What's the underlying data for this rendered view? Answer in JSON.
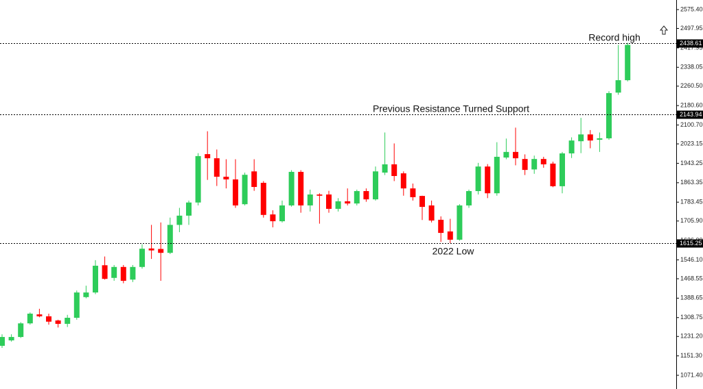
{
  "chart_data": {
    "type": "candlestick",
    "up_color": "#2ecc5a",
    "down_color": "#ff0000",
    "open": [
      1192.7,
      1215,
      1229,
      1285,
      1322,
      1314,
      1297,
      1283,
      1308,
      1393,
      1412,
      1524,
      1472,
      1517,
      1465,
      1517,
      1593,
      1591,
      1575,
      1690,
      1728,
      1782,
      1981,
      1964,
      1888,
      1877,
      1775,
      1910,
      1863,
      1733,
      1705,
      1770,
      1908,
      1770,
      1815,
      1815,
      1756,
      1787,
      1778,
      1829,
      1795,
      1905,
      1939,
      1902,
      1840,
      1809,
      1770,
      1711,
      1663,
      1629,
      1770,
      1829,
      1930,
      1820,
      1967,
      1990,
      1961,
      1918,
      1961,
      1942,
      1849,
      1984,
      2034,
      2062,
      2040,
      2046,
      2234,
      2285
    ],
    "high": [
      1240,
      1240,
      1290,
      1330,
      1345,
      1325,
      1300,
      1320,
      1420,
      1440,
      1545,
      1560,
      1525,
      1525,
      1525,
      1610,
      1690,
      1700,
      1720,
      1760,
      1790,
      1985,
      2075,
      2000,
      1960,
      1960,
      1905,
      1960,
      1870,
      1750,
      1790,
      1915,
      1915,
      1835,
      1820,
      1830,
      1800,
      1840,
      1835,
      1840,
      1930,
      2070,
      2025,
      1910,
      1860,
      1810,
      1790,
      1725,
      1715,
      1775,
      1835,
      1945,
      1940,
      2030,
      2045,
      2090,
      1980,
      1975,
      1970,
      1950,
      1990,
      2050,
      2130,
      2080,
      2070,
      2240,
      2430,
      2438.61
    ],
    "low": [
      1184,
      1210,
      1225,
      1280,
      1310,
      1280,
      1268,
      1270,
      1300,
      1388,
      1405,
      1465,
      1460,
      1450,
      1455,
      1510,
      1550,
      1460,
      1570,
      1660,
      1690,
      1770,
      1875,
      1850,
      1840,
      1760,
      1770,
      1830,
      1720,
      1680,
      1700,
      1765,
      1740,
      1745,
      1695,
      1740,
      1745,
      1770,
      1770,
      1785,
      1790,
      1895,
      1870,
      1810,
      1790,
      1710,
      1700,
      1620,
      1615,
      1625,
      1760,
      1815,
      1800,
      1810,
      1960,
      1935,
      1895,
      1900,
      1925,
      1845,
      1820,
      1965,
      1985,
      2005,
      1990,
      2040,
      2225,
      2280
    ],
    "close": [
      1229,
      1229,
      1285,
      1325,
      1314,
      1292,
      1283,
      1308,
      1412,
      1412,
      1522,
      1468,
      1517,
      1460,
      1517,
      1592,
      1585,
      1575,
      1690,
      1728,
      1782,
      1973,
      1964,
      1888,
      1877,
      1770,
      1896,
      1846,
      1731,
      1705,
      1770,
      1908,
      1770,
      1815,
      1810,
      1756,
      1787,
      1778,
      1829,
      1795,
      1910,
      1939,
      1891,
      1840,
      1804,
      1764,
      1708,
      1657,
      1629,
      1770,
      1829,
      1930,
      1820,
      1970,
      1990,
      1964,
      1916,
      1961,
      1939,
      1849,
      1984,
      2037,
      2062,
      2037,
      2046,
      2232,
      2285,
      2430
    ],
    "ylim": [
      1015.1,
      2614.8
    ],
    "yticks": [
      {
        "value": 2575.4,
        "label": "2575.40"
      },
      2497.95,
      2417.95,
      2338.05,
      {
        "value": 2260.5,
        "label": "2260.50"
      },
      {
        "value": 2180.6,
        "label": "2180.60"
      },
      {
        "value": 2100.7,
        "label": "2100.70"
      },
      2023.15,
      1943.25,
      1863.35,
      1783.45,
      {
        "value": 1705.9,
        "label": "1705.90"
      },
      {
        "value": 1626,
        "label": "1626.00"
      },
      {
        "value": 1546.1,
        "label": "1546.10"
      },
      1468.55,
      1388.65,
      1308.75,
      {
        "value": 1231.2,
        "label": "1231.20"
      },
      {
        "value": 1151.3,
        "label": "1151.30"
      },
      {
        "value": 1071.4,
        "label": "1071.40"
      }
    ],
    "levels": [
      {
        "value": 2438.61,
        "text": "Record high"
      },
      {
        "value": 2143.94,
        "text": "Previous Resistance Turned Support"
      },
      {
        "value": 1615.25,
        "text": "2022 Low"
      }
    ]
  }
}
